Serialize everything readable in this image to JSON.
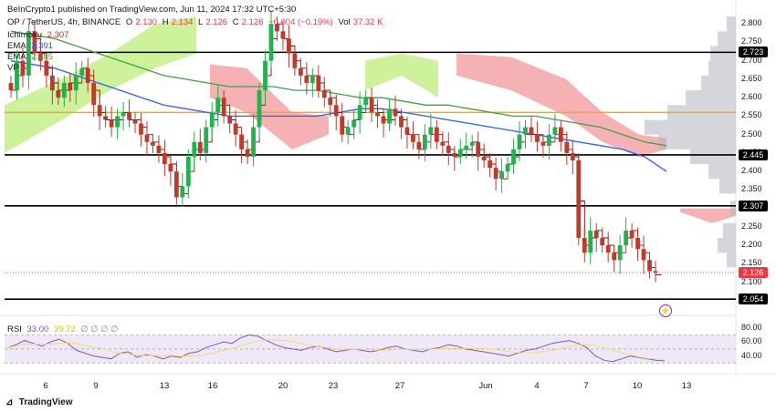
{
  "header": {
    "publisher": "BeInCrypto1 published on TradingView.com, Jun 11, 2024 17:32 UTC+5:30",
    "symbol": "OP / TetherUS, 4h, BINANCE",
    "ohlc": {
      "o_label": "O",
      "o": "2.130",
      "h_label": "H",
      "h": "2.134",
      "l_label": "L",
      "l": "2.126",
      "c_label": "C",
      "c": "2.126",
      "chg": "−0.004 (−0.19%)",
      "vol_label": "Vol",
      "vol": "37.32 K"
    },
    "ichimoku_label": "Ichimoku",
    "ichimoku_val": "2.307",
    "ema1_label": "EMA",
    "ema1_val": "2.391",
    "ema2_label": "EMA",
    "ema2_val": "2.485",
    "vp_label": "VP"
  },
  "rsi": {
    "label": "RSI",
    "v1": "33.00",
    "v2": "39.72",
    "icons": "∅ ∅ ∅ ∅"
  },
  "brand": "TradingView",
  "colors": {
    "up": "#26a69a",
    "down": "#ef5350",
    "up_vivid": "#2ecc40",
    "down_vivid": "#c0392b",
    "ema_fast": "#2962ff",
    "ema_slow": "#43a047",
    "kumo_bull": "#c6f08a",
    "kumo_bear": "#f4a3a8",
    "price_tag": "#f23645",
    "orange": "#f6a623",
    "vp": "#b2b5be",
    "rsi_line": "#7e57c2",
    "rsi_ma": "#f7d774",
    "baseline": "#8b0000"
  },
  "chart_data": {
    "type": "candlestick",
    "title": "OP / TetherUS, 4h, BINANCE",
    "ylim": [
      2.02,
      2.84
    ],
    "y_ticks": [
      "2.800",
      "2.750",
      "2.700",
      "2.650",
      "2.600",
      "2.550",
      "2.500",
      "2.450",
      "2.400",
      "2.350",
      "2.300",
      "2.250",
      "2.200",
      "2.150",
      "2.100"
    ],
    "x_ticks": [
      "6",
      "9",
      "13",
      "16",
      "20",
      "23",
      "27",
      "Jun",
      "4",
      "7",
      "10",
      "13"
    ],
    "horizontal_levels": [
      {
        "value": 2.723,
        "label": "2.723",
        "color": "#000000"
      },
      {
        "value": 2.445,
        "label": "2.445",
        "color": "#000000"
      },
      {
        "value": 2.307,
        "label": "2.307",
        "color": "#000000"
      },
      {
        "value": 2.054,
        "label": "2.054",
        "color": "#000000"
      },
      {
        "value": 2.56,
        "label": "",
        "color": "#f6a623"
      }
    ],
    "last_price": {
      "value": 2.126,
      "label": "2.126"
    },
    "series_close": [
      2.62,
      2.7,
      2.66,
      2.78,
      2.72,
      2.7,
      2.66,
      2.62,
      2.6,
      2.64,
      2.62,
      2.66,
      2.68,
      2.64,
      2.58,
      2.55,
      2.54,
      2.52,
      2.55,
      2.56,
      2.54,
      2.53,
      2.5,
      2.48,
      2.47,
      2.45,
      2.42,
      2.4,
      2.33,
      2.36,
      2.44,
      2.48,
      2.45,
      2.52,
      2.56,
      2.6,
      2.55,
      2.53,
      2.5,
      2.46,
      2.44,
      2.52,
      2.62,
      2.7,
      2.8,
      2.78,
      2.76,
      2.72,
      2.68,
      2.66,
      2.64,
      2.66,
      2.62,
      2.6,
      2.58,
      2.55,
      2.5,
      2.52,
      2.54,
      2.58,
      2.6,
      2.56,
      2.55,
      2.53,
      2.57,
      2.55,
      2.52,
      2.5,
      2.48,
      2.46,
      2.5,
      2.52,
      2.48,
      2.47,
      2.45,
      2.44,
      2.46,
      2.47,
      2.48,
      2.44,
      2.43,
      2.41,
      2.38,
      2.4,
      2.42,
      2.46,
      2.5,
      2.52,
      2.5,
      2.48,
      2.47,
      2.5,
      2.52,
      2.48,
      2.45,
      2.43,
      2.22,
      2.18,
      2.24,
      2.22,
      2.2,
      2.18,
      2.16,
      2.2,
      2.24,
      2.22,
      2.19,
      2.16,
      2.13,
      2.126
    ],
    "ema_fast": [
      2.7,
      2.69,
      2.68,
      2.66,
      2.64,
      2.62,
      2.6,
      2.58,
      2.57,
      2.56,
      2.55,
      2.55,
      2.55,
      2.55,
      2.55,
      2.56,
      2.57,
      2.57,
      2.56,
      2.55,
      2.54,
      2.53,
      2.52,
      2.51,
      2.5,
      2.49,
      2.48,
      2.47,
      2.46,
      2.44,
      2.4
    ],
    "ema_slow": [
      2.78,
      2.77,
      2.76,
      2.74,
      2.72,
      2.7,
      2.68,
      2.66,
      2.65,
      2.64,
      2.63,
      2.63,
      2.63,
      2.62,
      2.62,
      2.61,
      2.6,
      2.6,
      2.59,
      2.58,
      2.58,
      2.57,
      2.56,
      2.55,
      2.55,
      2.54,
      2.53,
      2.52,
      2.5,
      2.48,
      2.47
    ],
    "rsi_ylim": [
      20,
      90
    ],
    "rsi_ticks": [
      "80.00",
      "60.00",
      "40.00"
    ],
    "rsi_values": [
      52,
      56,
      62,
      58,
      54,
      60,
      64,
      58,
      48,
      44,
      40,
      38,
      36,
      44,
      46,
      38,
      42,
      40,
      36,
      40,
      38,
      44,
      46,
      52,
      56,
      60,
      58,
      66,
      70,
      68,
      62,
      56,
      52,
      50,
      48,
      52,
      54,
      50,
      46,
      48,
      50,
      48,
      46,
      48,
      52,
      54,
      50,
      48,
      46,
      50,
      52,
      56,
      54,
      50,
      48,
      46,
      44,
      42,
      40,
      44,
      48,
      50,
      54,
      58,
      60,
      62,
      58,
      52,
      40,
      34,
      32,
      36,
      40,
      38,
      36,
      34,
      33
    ]
  }
}
